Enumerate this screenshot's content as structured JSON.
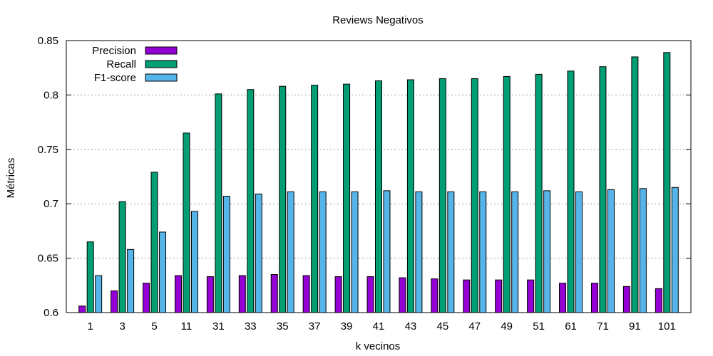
{
  "chart_data": {
    "type": "bar",
    "title": "Reviews Negativos",
    "xlabel": "k vecinos",
    "ylabel": "Métricas",
    "ylim": [
      0.6,
      0.85
    ],
    "yticks": [
      "0.6",
      "0.65",
      "0.7",
      "0.75",
      "0.8",
      "0.85"
    ],
    "grid": true,
    "legend_position": "top-left",
    "categories": [
      "1",
      "3",
      "5",
      "11",
      "31",
      "33",
      "35",
      "37",
      "39",
      "41",
      "43",
      "45",
      "47",
      "49",
      "51",
      "61",
      "71",
      "91",
      "101"
    ],
    "series": [
      {
        "name": "Precision",
        "color": "#9400d3",
        "values": [
          0.606,
          0.62,
          0.627,
          0.634,
          0.633,
          0.634,
          0.635,
          0.634,
          0.633,
          0.633,
          0.632,
          0.631,
          0.63,
          0.63,
          0.63,
          0.627,
          0.627,
          0.624,
          0.622
        ]
      },
      {
        "name": "Recall",
        "color": "#009e73",
        "values": [
          0.665,
          0.702,
          0.729,
          0.765,
          0.801,
          0.805,
          0.808,
          0.809,
          0.81,
          0.813,
          0.814,
          0.815,
          0.815,
          0.817,
          0.819,
          0.822,
          0.826,
          0.835,
          0.839
        ]
      },
      {
        "name": "F1-score",
        "color": "#56b4e9",
        "values": [
          0.634,
          0.658,
          0.674,
          0.693,
          0.707,
          0.709,
          0.711,
          0.711,
          0.711,
          0.712,
          0.711,
          0.711,
          0.711,
          0.711,
          0.712,
          0.711,
          0.713,
          0.714,
          0.715
        ]
      }
    ]
  }
}
